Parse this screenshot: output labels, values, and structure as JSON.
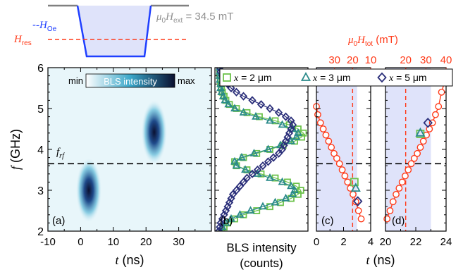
{
  "inset": {
    "h_oe_label": "-H",
    "h_oe_sub": "Oe",
    "h_res_label": "H",
    "h_res_sub": "res",
    "h_ext_mu": "μ",
    "h_ext_mu_sub": "0",
    "h_ext_H": "H",
    "h_ext_sub": "ext",
    "h_ext_value": " = 34.5 mT",
    "colors": {
      "pulse": "#1f3fff",
      "res": "#ff3b1a",
      "ext": "#808080",
      "fill": "#dfe3fa"
    }
  },
  "top_axis": {
    "mu": "μ",
    "mu_sub": "0",
    "H": "H",
    "sub": "tot",
    "unit": " (mT)",
    "color": "#ff3b1a"
  },
  "y_axis": {
    "label": "f",
    "unit": " (GHz)",
    "ticks": [
      "2",
      "3",
      "4",
      "5",
      "6"
    ]
  },
  "x_axis": {
    "label": "t",
    "unit": " (ns)"
  },
  "f_rf": {
    "label": "f",
    "sub": "rf",
    "value": 3.65
  },
  "colorbar": {
    "min_label": "min",
    "title": "BLS intensity",
    "max_label": "max",
    "colors": [
      "#ffffff",
      "#3aa7c9",
      "#0a1030"
    ]
  },
  "legend": [
    {
      "prefix": "x",
      "text": " = 2 μm",
      "marker": "square",
      "color": "#6cc24a"
    },
    {
      "prefix": "x",
      "text": " = 3 μm",
      "marker": "triangle",
      "color": "#2a8a8a"
    },
    {
      "prefix": "x",
      "text": " = 5 μm",
      "marker": "diamond",
      "color": "#2b2f7a"
    }
  ],
  "panel_labels": [
    "(a)",
    "(b)",
    "(c)",
    "(d)"
  ],
  "panel_b_xlabel": [
    "BLS intensity",
    "(counts)"
  ],
  "chart_data": [
    {
      "panel": "a",
      "type": "heatmap",
      "xlabel": "t (ns)",
      "ylabel": "f (GHz)",
      "xlim": [
        -10,
        40
      ],
      "ylim": [
        2,
        6
      ],
      "xticks": [
        -10,
        0,
        10,
        20,
        30
      ],
      "yticks": [
        2,
        3,
        4,
        5,
        6
      ],
      "hotspots": [
        {
          "t": 2.5,
          "f": 3.0,
          "dt": 1.8,
          "df": 0.36
        },
        {
          "t": 22.5,
          "f": 4.42,
          "dt": 1.8,
          "df": 0.36
        }
      ],
      "hline": 3.65
    },
    {
      "panel": "b",
      "type": "line",
      "xlabel": "BLS intensity (counts)",
      "ylim": [
        2,
        6
      ],
      "series": [
        {
          "name": "x = 2 μm",
          "marker": "square",
          "color": "#6cc24a",
          "f": [
            2.0,
            2.1,
            2.2,
            2.3,
            2.4,
            2.5,
            2.6,
            2.7,
            2.8,
            2.9,
            3.0,
            3.1,
            3.2,
            3.3,
            3.4,
            3.5,
            3.6,
            3.7,
            3.8,
            3.9,
            4.0,
            4.1,
            4.2,
            4.3,
            4.4,
            4.5,
            4.6,
            4.7,
            4.8,
            4.9,
            5.0,
            5.1,
            5.2,
            5.3,
            5.4,
            5.5,
            5.6,
            5.7,
            5.8,
            5.9,
            6.0
          ],
          "v": [
            0.05,
            0.08,
            0.12,
            0.2,
            0.3,
            0.45,
            0.6,
            0.72,
            0.84,
            0.92,
            0.95,
            0.9,
            0.8,
            0.66,
            0.5,
            0.34,
            0.22,
            0.2,
            0.3,
            0.45,
            0.6,
            0.75,
            0.88,
            0.96,
            0.98,
            0.92,
            0.82,
            0.66,
            0.48,
            0.34,
            0.22,
            0.14,
            0.1,
            0.08,
            0.06,
            0.05,
            0.04,
            0.04,
            0.03,
            0.03,
            0.03
          ]
        },
        {
          "name": "x = 3 μm",
          "marker": "triangle",
          "color": "#2a8a8a",
          "f": [
            2.0,
            2.1,
            2.2,
            2.3,
            2.4,
            2.5,
            2.6,
            2.7,
            2.8,
            2.9,
            3.0,
            3.1,
            3.2,
            3.3,
            3.4,
            3.5,
            3.6,
            3.7,
            3.8,
            3.9,
            4.0,
            4.1,
            4.2,
            4.3,
            4.4,
            4.5,
            4.6,
            4.7,
            4.8,
            4.9,
            5.0,
            5.1,
            5.2,
            5.3,
            5.4,
            5.5,
            5.6,
            5.7,
            5.8,
            5.9,
            6.0
          ],
          "v": [
            0.04,
            0.06,
            0.1,
            0.16,
            0.26,
            0.38,
            0.52,
            0.66,
            0.78,
            0.86,
            0.88,
            0.84,
            0.74,
            0.6,
            0.46,
            0.32,
            0.22,
            0.2,
            0.28,
            0.42,
            0.58,
            0.72,
            0.84,
            0.9,
            0.92,
            0.86,
            0.74,
            0.6,
            0.44,
            0.3,
            0.2,
            0.13,
            0.09,
            0.07,
            0.05,
            0.04,
            0.04,
            0.03,
            0.03,
            0.03,
            0.03
          ]
        },
        {
          "name": "x = 5 μm",
          "marker": "diamond",
          "color": "#2b2f7a",
          "f": [
            2.0,
            2.1,
            2.2,
            2.3,
            2.4,
            2.5,
            2.6,
            2.7,
            2.8,
            2.9,
            3.0,
            3.1,
            3.2,
            3.3,
            3.4,
            3.5,
            3.6,
            3.7,
            3.8,
            3.9,
            4.0,
            4.1,
            4.2,
            4.3,
            4.4,
            4.5,
            4.6,
            4.7,
            4.8,
            4.9,
            5.0,
            5.1,
            5.2,
            5.3,
            5.4,
            5.5,
            5.6,
            5.7,
            5.8,
            5.9,
            6.0
          ],
          "v": [
            0.02,
            0.03,
            0.04,
            0.06,
            0.08,
            0.1,
            0.12,
            0.14,
            0.16,
            0.18,
            0.22,
            0.26,
            0.3,
            0.34,
            0.4,
            0.46,
            0.52,
            0.58,
            0.64,
            0.7,
            0.74,
            0.76,
            0.78,
            0.8,
            0.82,
            0.84,
            0.86,
            0.84,
            0.78,
            0.7,
            0.6,
            0.5,
            0.4,
            0.3,
            0.22,
            0.16,
            0.12,
            0.08,
            0.06,
            0.04,
            0.03
          ]
        }
      ]
    },
    {
      "panel": "c",
      "type": "line",
      "xlabel": "t (ns)",
      "xlim": [
        0,
        4
      ],
      "xticks": [
        0,
        2,
        4
      ],
      "top_xlim": [
        40,
        10
      ],
      "top_xticks": [
        30,
        20,
        10
      ],
      "ylim": [
        2,
        6
      ],
      "shade": [
        0,
        3
      ],
      "vline_top": 20,
      "hline": 3.65,
      "line": {
        "color": "#ff3b1a",
        "x": [
          0.0,
          0.1,
          0.3,
          0.5,
          0.7,
          0.9,
          1.1,
          1.3,
          1.5,
          1.7,
          1.9,
          2.1,
          2.3,
          2.5,
          2.7,
          2.9,
          3.1,
          3.3
        ],
        "y": [
          5.05,
          4.85,
          4.65,
          4.5,
          4.35,
          4.2,
          4.05,
          3.9,
          3.78,
          3.65,
          3.5,
          3.35,
          3.2,
          3.05,
          2.9,
          2.72,
          2.5,
          2.3
        ]
      },
      "markers": [
        {
          "x": 2.8,
          "y": 3.2,
          "marker": "square",
          "color": "#6cc24a"
        },
        {
          "x": 2.9,
          "y": 3.05,
          "marker": "triangle",
          "color": "#2a8a8a"
        },
        {
          "x": 3.05,
          "y": 2.73,
          "marker": "diamond",
          "color": "#2b2f7a"
        }
      ]
    },
    {
      "panel": "d",
      "type": "line",
      "xlabel": "t (ns)",
      "xlim": [
        20,
        24
      ],
      "xticks": [
        20,
        22,
        24
      ],
      "top_xlim": [
        10,
        40
      ],
      "top_xticks": [
        20,
        30,
        40
      ],
      "ylim": [
        2,
        6
      ],
      "shade": [
        20,
        23
      ],
      "vline_top": 20,
      "hline": 3.65,
      "line": {
        "color": "#ff3b1a",
        "x": [
          20.1,
          20.3,
          20.5,
          20.7,
          20.9,
          21.1,
          21.3,
          21.5,
          21.7,
          21.9,
          22.1,
          22.3,
          22.5,
          22.7,
          22.9,
          23.1,
          23.3,
          23.5,
          23.7,
          23.9
        ],
        "y": [
          2.3,
          2.5,
          2.72,
          2.9,
          3.05,
          3.2,
          3.35,
          3.5,
          3.65,
          3.78,
          3.9,
          4.05,
          4.2,
          4.35,
          4.5,
          4.65,
          4.85,
          5.05,
          5.4,
          5.65
        ]
      },
      "markers": [
        {
          "x": 22.3,
          "y": 4.38,
          "marker": "square",
          "color": "#6cc24a"
        },
        {
          "x": 22.3,
          "y": 4.4,
          "marker": "triangle",
          "color": "#2a8a8a"
        },
        {
          "x": 22.8,
          "y": 4.65,
          "marker": "diamond",
          "color": "#2b2f7a"
        }
      ]
    }
  ]
}
